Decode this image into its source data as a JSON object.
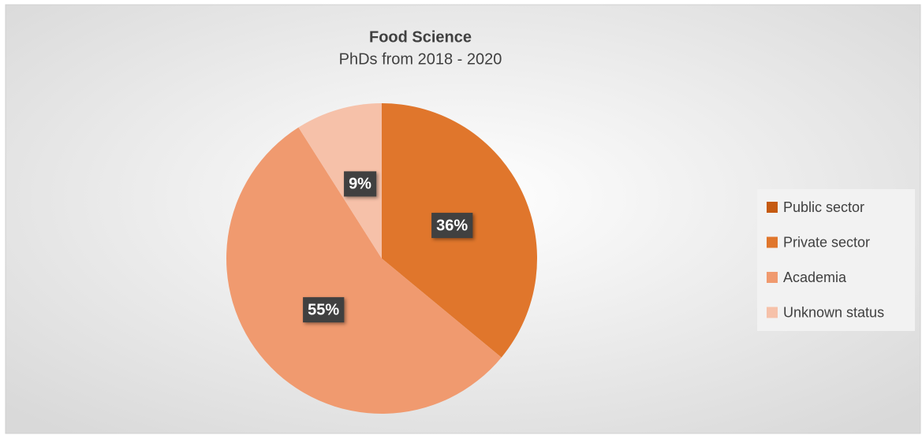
{
  "chart_data": {
    "type": "pie",
    "title": "Food Science",
    "subtitle": "PhDs from 2018 - 2020",
    "categories": [
      "Public sector",
      "Private sector",
      "Academia",
      "Unknown status"
    ],
    "values": [
      0,
      36,
      55,
      9
    ],
    "value_labels": [
      null,
      "36%",
      "55%",
      "9%"
    ],
    "colors": [
      "#c55a11",
      "#e0762c",
      "#f09a6f",
      "#f6c1a9"
    ],
    "legend": "right"
  }
}
